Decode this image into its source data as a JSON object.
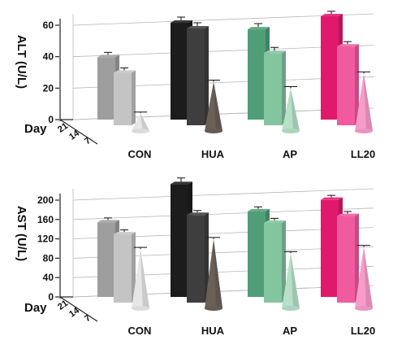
{
  "chart_data": [
    {
      "type": "bar",
      "ylabel": "ALT (U/L)",
      "ylim": [
        0,
        60
      ],
      "yticks": [
        0,
        20,
        40,
        60
      ],
      "categories": [
        "CON",
        "HUA",
        "AP",
        "LL20"
      ],
      "depth_axis_label": "Day",
      "depth_ticks": [
        "21",
        "14",
        "7"
      ],
      "series": [
        {
          "values": [
            38,
            59,
            55,
            63
          ]
        },
        {
          "values": [
            32,
            59,
            44,
            48
          ]
        },
        {
          "values": [
            11,
            30,
            26,
            35
          ]
        }
      ],
      "errors": [
        [
          1.5,
          2,
          2,
          1.5
        ],
        [
          1.5,
          2,
          2,
          1.5
        ],
        [
          0.5,
          1,
          1,
          1
        ]
      ],
      "grid": true
    },
    {
      "type": "bar",
      "ylabel": "AST (U/L)",
      "ylim": [
        0,
        200
      ],
      "yticks": [
        0,
        40,
        80,
        120,
        160,
        200
      ],
      "categories": [
        "CON",
        "HUA",
        "AP",
        "LL20"
      ],
      "depth_axis_label": "Day",
      "depth_ticks": [
        "21",
        "14",
        "7"
      ],
      "series": [
        {
          "values": [
            142,
            215,
            163,
            185
          ]
        },
        {
          "values": [
            130,
            167,
            152,
            165
          ]
        },
        {
          "values": [
            113,
            132,
            105,
            117
          ]
        }
      ],
      "errors": [
        [
          4,
          7,
          4,
          4
        ],
        [
          4,
          4,
          4,
          4
        ],
        [
          3,
          3,
          3,
          3
        ]
      ],
      "grid": true
    }
  ],
  "colors": {
    "CON": [
      "#9e9e9e",
      "#c4c4c4",
      "#e6e6e6"
    ],
    "HUA": [
      "#1c1c1c",
      "#3e3e3e",
      "#6a6058"
    ],
    "AP": [
      "#4f9e78",
      "#83c59f",
      "#b6e0c7"
    ],
    "LL20": [
      "#e0196c",
      "#f25aa0",
      "#f79cca"
    ]
  }
}
